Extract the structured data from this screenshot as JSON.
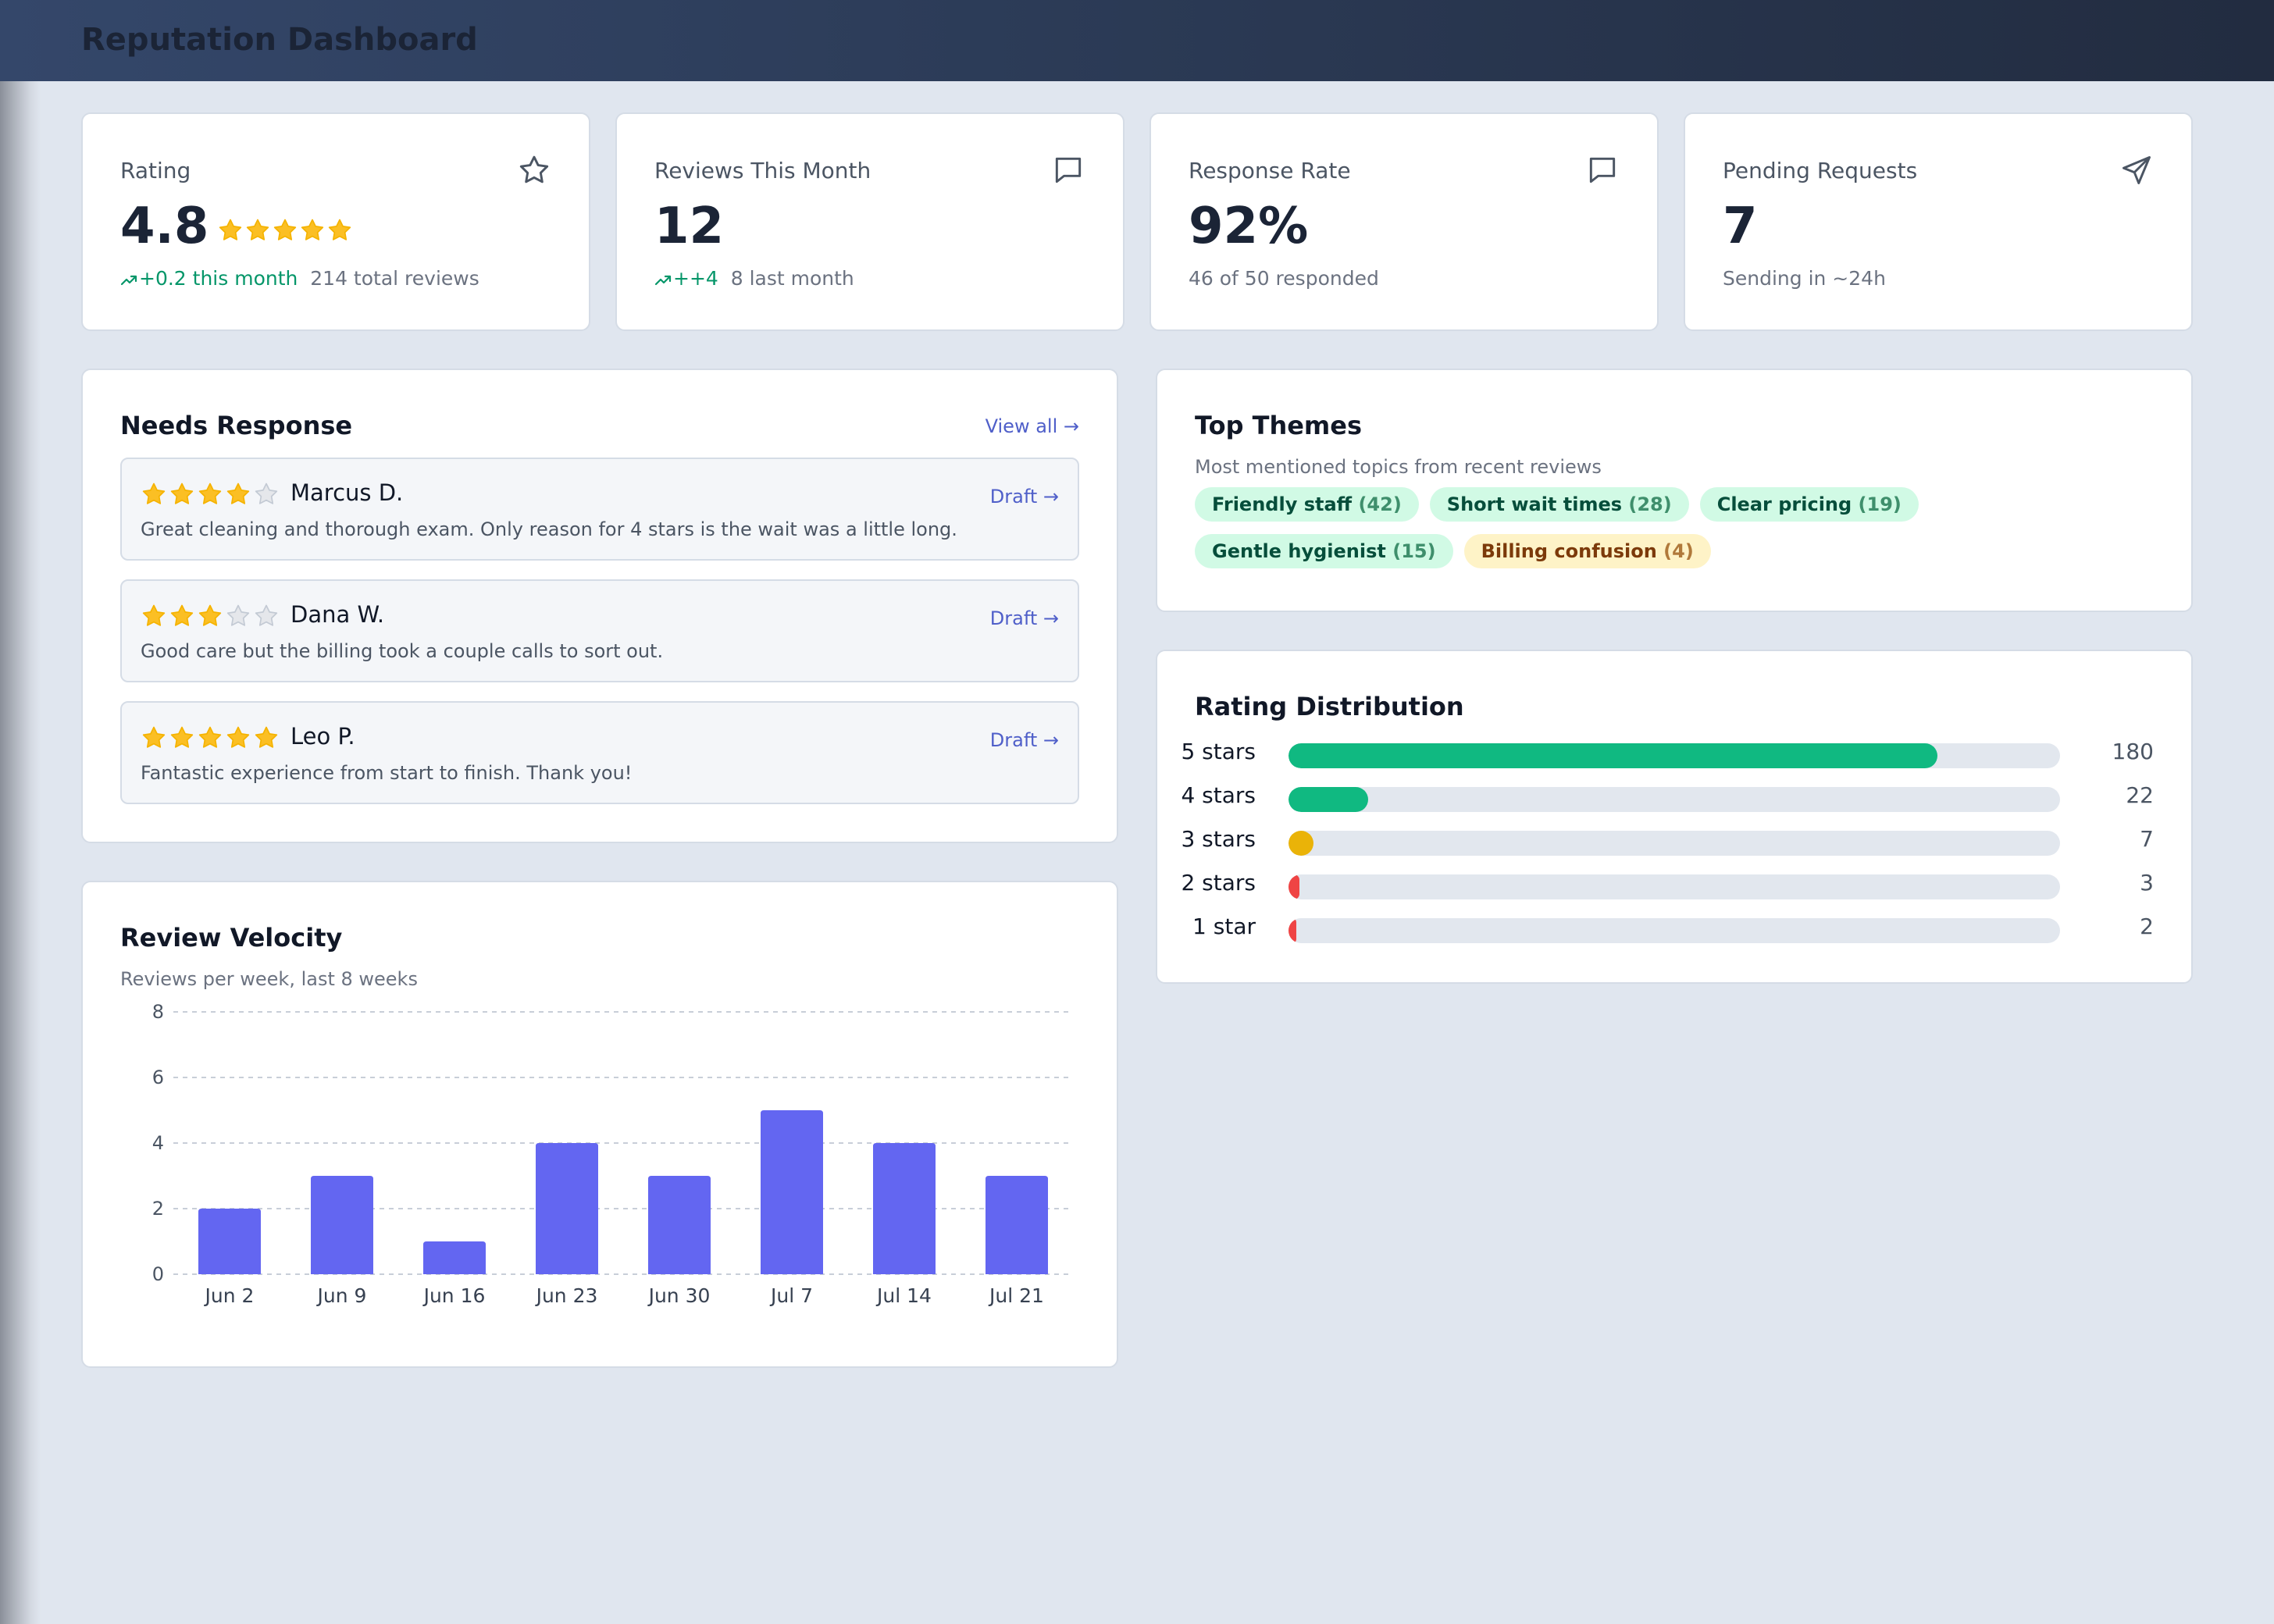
{
  "header": {
    "title": "Reputation Dashboard"
  },
  "stats": [
    {
      "label": "Rating",
      "value": "4.8",
      "trend": "+0.2 this month",
      "sub": "214 total reviews",
      "icon": "star-outline-icon"
    },
    {
      "label": "Reviews This Month",
      "value": "12",
      "trend": "++4",
      "sub": "8 last month",
      "icon": "message-square-icon"
    },
    {
      "label": "Response Rate",
      "value": "92%",
      "sub": "46 of 50 responded",
      "icon": "message-square-icon"
    },
    {
      "label": "Pending Requests",
      "value": "7",
      "sub": "Sending in ~24h",
      "icon": "send-icon"
    }
  ],
  "rating_stars": 5,
  "needs_response": {
    "title": "Needs Response",
    "view_all": "View all →",
    "reviews": [
      {
        "stars": 4,
        "name": "Marcus D.",
        "draft": "Draft →",
        "text": "Great cleaning and thorough exam. Only reason for 4 stars is the wait was a little long."
      },
      {
        "stars": 3,
        "name": "Dana W.",
        "draft": "Draft →",
        "text": "Good care but the billing took a couple calls to sort out."
      },
      {
        "stars": 5,
        "name": "Leo P.",
        "draft": "Draft →",
        "text": "Fantastic experience from start to finish. Thank you!"
      }
    ]
  },
  "themes": {
    "title": "Top Themes",
    "subtitle": "Most mentioned topics from recent reviews",
    "chips": [
      {
        "label": "Friendly staff",
        "count": "(42)",
        "sentiment": "positive"
      },
      {
        "label": "Short wait times",
        "count": "(28)",
        "sentiment": "positive"
      },
      {
        "label": "Clear pricing",
        "count": "(19)",
        "sentiment": "positive"
      },
      {
        "label": "Gentle hygienist",
        "count": "(15)",
        "sentiment": "positive"
      },
      {
        "label": "Billing confusion",
        "count": "(4)",
        "sentiment": "negative"
      }
    ]
  },
  "distribution": {
    "title": "Rating Distribution",
    "max": 214,
    "rows": [
      {
        "label": "5 stars",
        "count": "180",
        "value": 180,
        "color": "#10b981"
      },
      {
        "label": "4 stars",
        "count": "22",
        "value": 22,
        "color": "#10b981"
      },
      {
        "label": "3 stars",
        "count": "7",
        "value": 7,
        "color": "#eab308"
      },
      {
        "label": "2 stars",
        "count": "3",
        "value": 3,
        "color": "#ef4444"
      },
      {
        "label": "1 star",
        "count": "2",
        "value": 2,
        "color": "#ef4444"
      }
    ]
  },
  "velocity": {
    "title": "Review Velocity",
    "subtitle": "Reviews per week, last 8 weeks"
  },
  "chart_data": {
    "type": "bar",
    "categories": [
      "Jun 2",
      "Jun 9",
      "Jun 16",
      "Jun 23",
      "Jun 30",
      "Jul 7",
      "Jul 14",
      "Jul 21"
    ],
    "values": [
      2,
      3,
      1,
      4,
      3,
      5,
      4,
      3
    ],
    "yticks": [
      0,
      2,
      4,
      6,
      8
    ],
    "ylim": [
      0,
      8
    ],
    "grid": true,
    "bar_color": "#6366f1"
  }
}
